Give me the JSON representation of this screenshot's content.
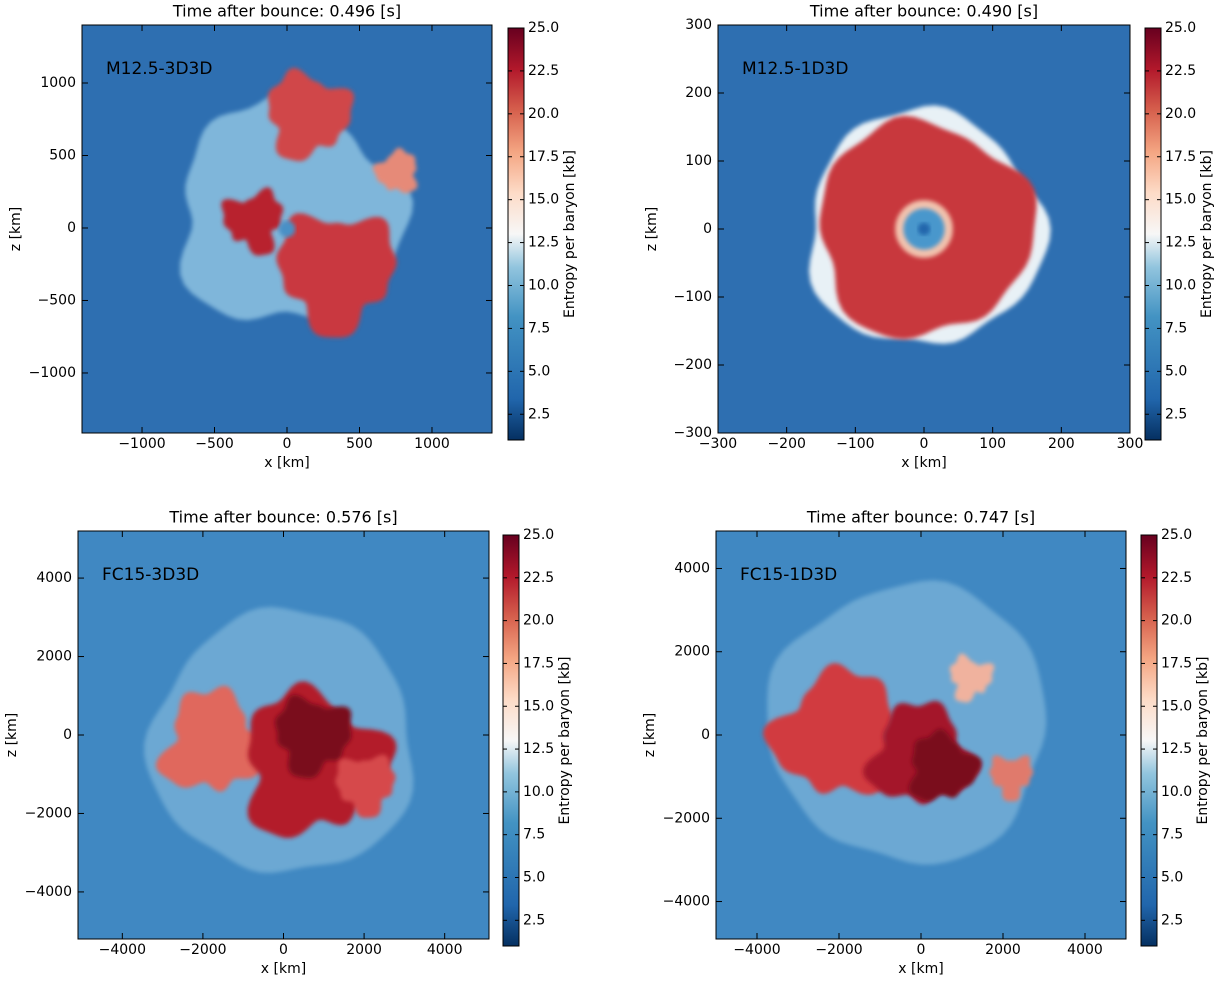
{
  "chart_data": [
    {
      "type": "heatmap",
      "title": "Time after bounce: 0.496 [s]",
      "annotation": "M12.5-3D3D",
      "xlabel": "x [km]",
      "ylabel": "z [km]",
      "xlim": [
        -1414,
        1414
      ],
      "ylim": [
        -1414,
        1400
      ],
      "xticks": [
        {
          "value": -1000,
          "label": "−1000"
        },
        {
          "value": -500,
          "label": "−500"
        },
        0,
        500,
        1000
      ],
      "yticks": [
        {
          "value": -1000,
          "label": "−1000"
        },
        {
          "value": -500,
          "label": "−500"
        },
        0,
        500,
        1000
      ],
      "colorbar_label": "Entropy per baryon [kb]",
      "clim": [
        1,
        25
      ],
      "cticks": [
        2.5,
        {
          "value": 5,
          "label": "5.0"
        },
        7.5,
        {
          "value": 10,
          "label": "10.0"
        },
        12.5,
        {
          "value": 15,
          "label": "15.0"
        },
        17.5,
        {
          "value": 20,
          "label": "20.0"
        },
        22.5,
        {
          "value": 25,
          "label": "25.0"
        }
      ]
    },
    {
      "type": "heatmap",
      "title": "Time after bounce: 0.490 [s]",
      "annotation": "M12.5-1D3D",
      "xlabel": "x [km]",
      "ylabel": "z [km]",
      "xlim": [
        -300,
        300
      ],
      "ylim": [
        -300,
        300
      ],
      "xticks": [
        {
          "value": -300,
          "label": "−300"
        },
        {
          "value": -200,
          "label": "−200"
        },
        {
          "value": -100,
          "label": "−100"
        },
        0,
        100,
        200,
        300
      ],
      "yticks": [
        {
          "value": -300,
          "label": "−300"
        },
        {
          "value": -200,
          "label": "−200"
        },
        {
          "value": -100,
          "label": "−100"
        },
        0,
        100,
        200,
        300
      ],
      "colorbar_label": "Entropy per baryon [kb]",
      "clim": [
        1,
        25
      ],
      "cticks": [
        2.5,
        {
          "value": 5,
          "label": "5.0"
        },
        7.5,
        {
          "value": 10,
          "label": "10.0"
        },
        12.5,
        {
          "value": 15,
          "label": "15.0"
        },
        17.5,
        {
          "value": 20,
          "label": "20.0"
        },
        22.5,
        {
          "value": 25,
          "label": "25.0"
        }
      ]
    },
    {
      "type": "heatmap",
      "title": "Time after bounce: 0.576 [s]",
      "annotation": "FC15-3D3D",
      "xlabel": "x [km]",
      "ylabel": "z [km]",
      "xlim": [
        -5100,
        5100
      ],
      "ylim": [
        -5200,
        5200
      ],
      "xticks": [
        {
          "value": -4000,
          "label": "−4000"
        },
        {
          "value": -2000,
          "label": "−2000"
        },
        0,
        2000,
        4000
      ],
      "yticks": [
        {
          "value": -4000,
          "label": "−4000"
        },
        {
          "value": -2000,
          "label": "−2000"
        },
        0,
        2000,
        4000
      ],
      "colorbar_label": "Entropy per baryon [kb]",
      "clim": [
        1,
        25
      ],
      "cticks": [
        2.5,
        {
          "value": 5,
          "label": "5.0"
        },
        7.5,
        {
          "value": 10,
          "label": "10.0"
        },
        12.5,
        {
          "value": 15,
          "label": "15.0"
        },
        17.5,
        {
          "value": 20,
          "label": "20.0"
        },
        22.5,
        {
          "value": 25,
          "label": "25.0"
        }
      ]
    },
    {
      "type": "heatmap",
      "title": "Time after bounce: 0.747 [s]",
      "annotation": "FC15-1D3D",
      "xlabel": "x [km]",
      "ylabel": "z [km]",
      "xlim": [
        -5000,
        5000
      ],
      "ylim": [
        -4900,
        4900
      ],
      "xticks": [
        {
          "value": -4000,
          "label": "−4000"
        },
        {
          "value": -2000,
          "label": "−2000"
        },
        0,
        2000,
        4000
      ],
      "yticks": [
        {
          "value": -4000,
          "label": "−4000"
        },
        {
          "value": -2000,
          "label": "−2000"
        },
        0,
        2000,
        4000
      ],
      "colorbar_label": "Entropy per baryon [kb]",
      "clim": [
        1,
        25
      ],
      "cticks": [
        2.5,
        {
          "value": 5,
          "label": "5.0"
        },
        7.5,
        {
          "value": 10,
          "label": "10.0"
        },
        12.5,
        {
          "value": 15,
          "label": "15.0"
        },
        17.5,
        {
          "value": 20,
          "label": "20.0"
        },
        22.5,
        {
          "value": 25,
          "label": "25.0"
        }
      ]
    }
  ]
}
